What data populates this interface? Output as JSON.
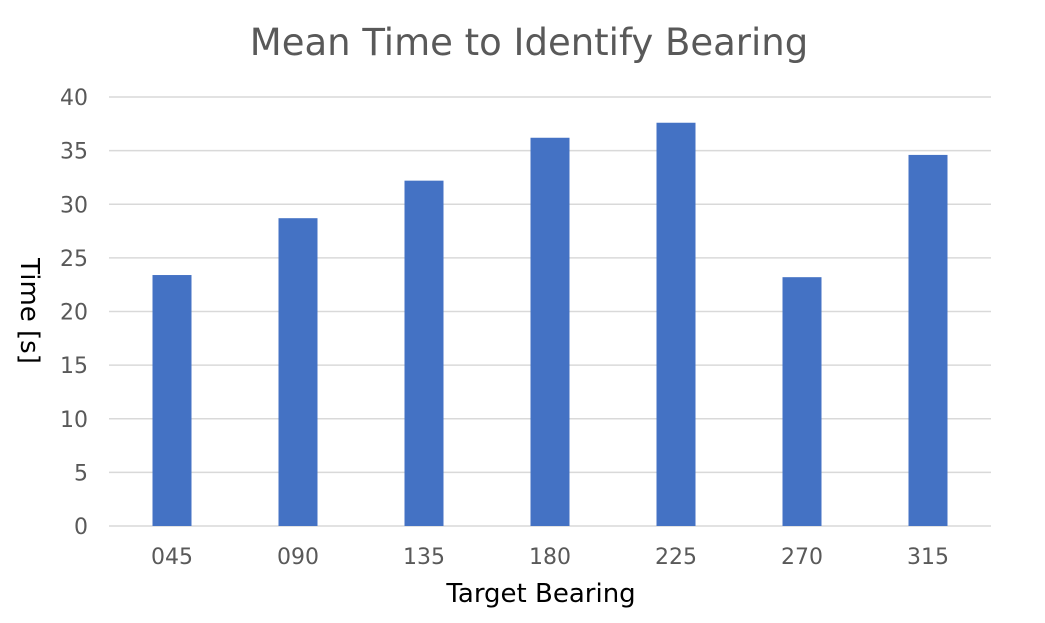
{
  "chart_data": {
    "type": "bar",
    "title": "Mean Time to Identify Bearing",
    "xlabel": "Target Bearing",
    "ylabel": "Time [s]",
    "categories": [
      "045",
      "090",
      "135",
      "180",
      "225",
      "270",
      "315"
    ],
    "values": [
      23.4,
      28.7,
      32.2,
      36.2,
      37.6,
      23.2,
      34.6
    ],
    "ylim": [
      0,
      40
    ],
    "yticks": [
      0,
      5,
      10,
      15,
      20,
      25,
      30,
      35,
      40
    ],
    "grid": true,
    "legend": "none",
    "bar_color": "#4472c4"
  }
}
